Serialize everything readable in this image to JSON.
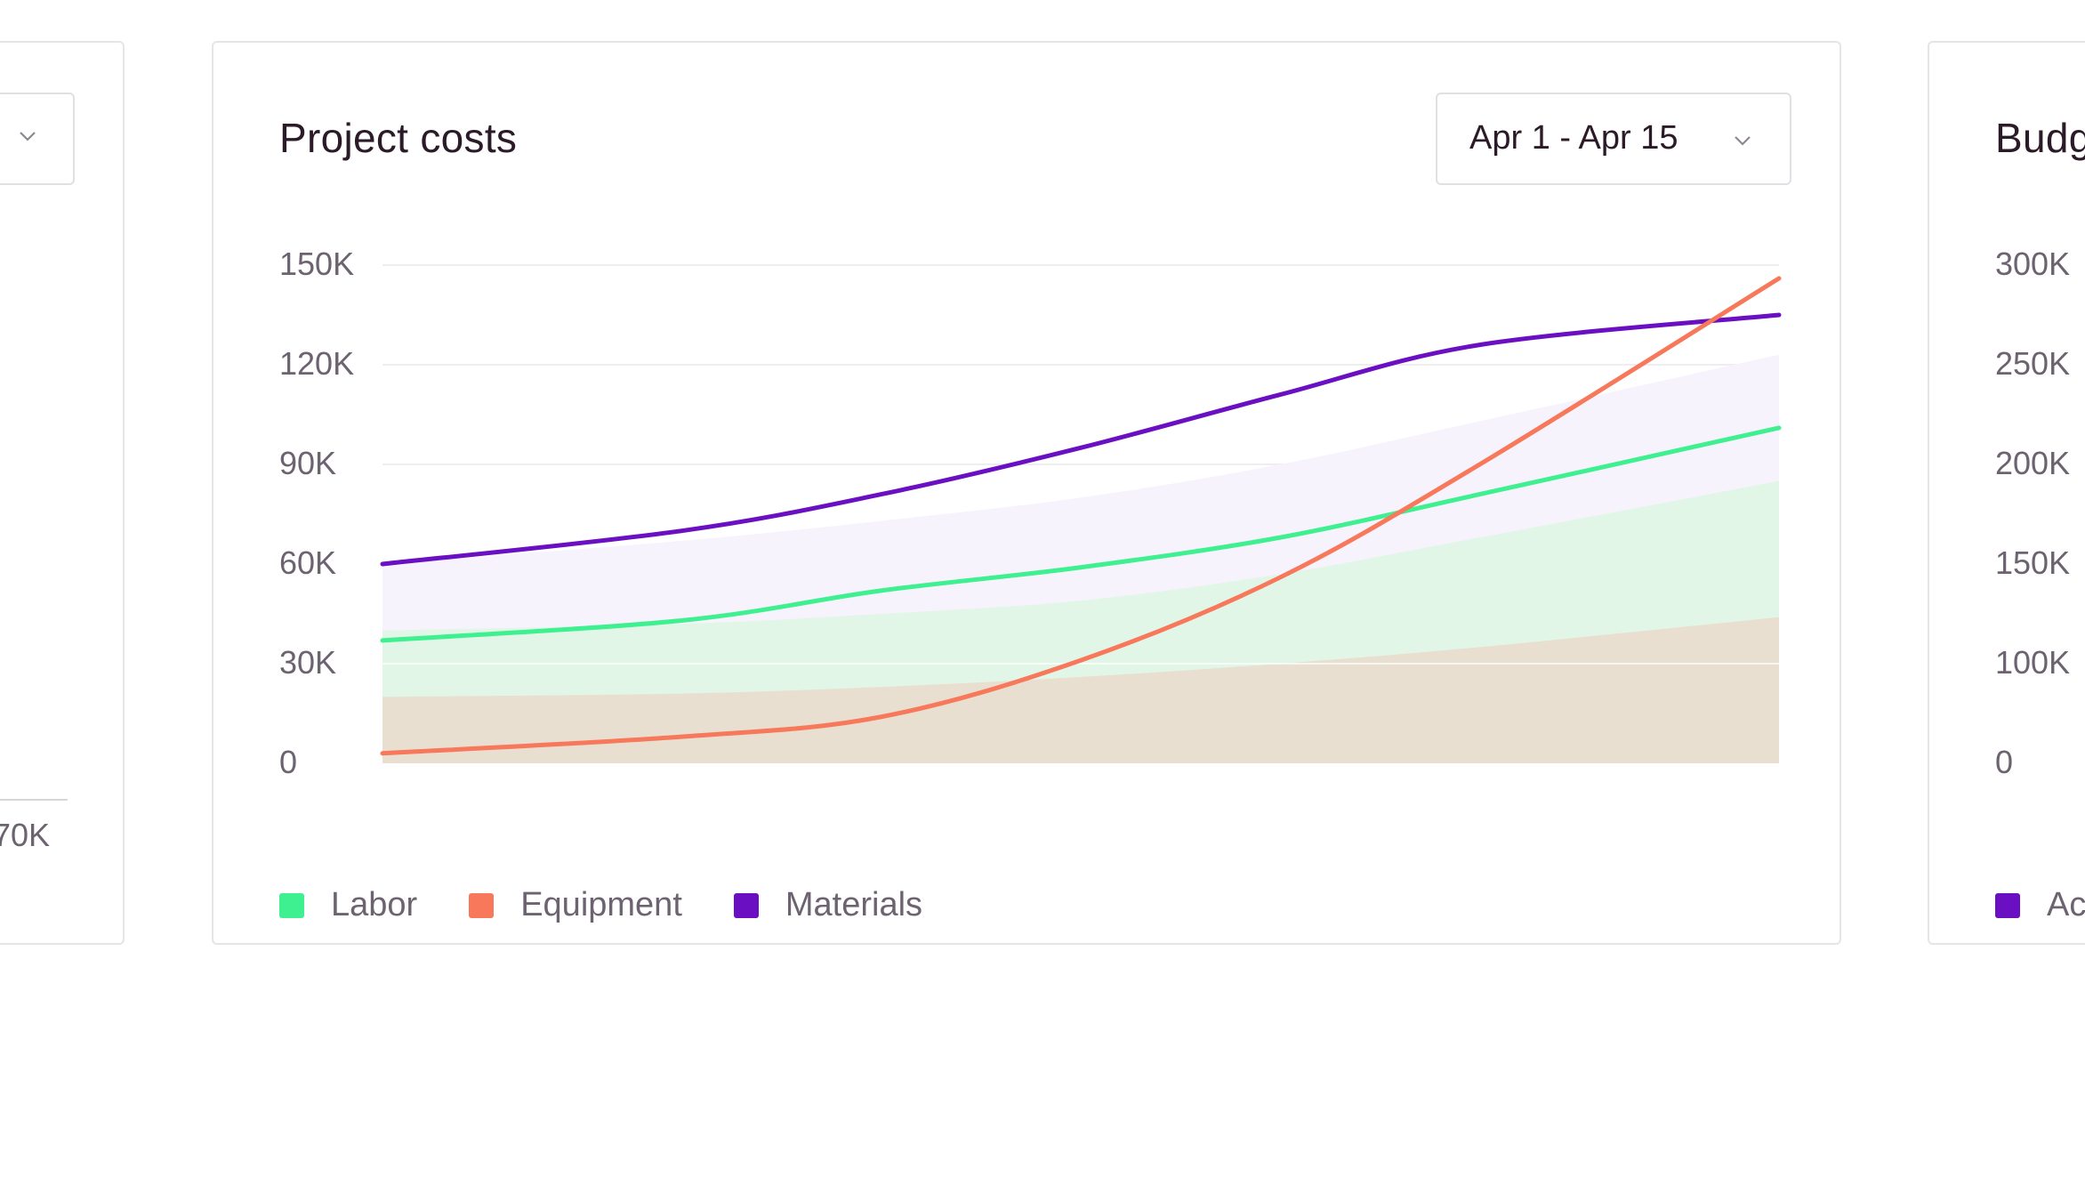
{
  "left_card": {
    "tick_partial": "70K"
  },
  "main_card": {
    "title": "Project costs",
    "date_range": "Apr 1 - Apr 15",
    "chevron_icon": "chevron-down-icon"
  },
  "right_card": {
    "title_partial": "Budg",
    "legend_partial": "Ac",
    "legend_color": "#6a10c2",
    "y_ticks": [
      "300K",
      "250K",
      "200K",
      "150K",
      "100K",
      "0"
    ]
  },
  "colors": {
    "labor": "#3ef08f",
    "equipment": "#f7785a",
    "materials": "#6a10c2",
    "labor_fill": "#e2f6e7",
    "equipment_fill": "#e8dfd0",
    "materials_fill": "#f6f3fc",
    "grid": "#efedf0"
  },
  "chart_data": {
    "type": "line",
    "x": [
      1,
      4,
      6,
      8,
      10,
      12,
      15
    ],
    "y_ticks": [
      "150K",
      "120K",
      "90K",
      "60K",
      "30K",
      "0"
    ],
    "ylim": [
      0,
      150000
    ],
    "grid": true,
    "legend_position": "bottom-left",
    "series": [
      {
        "name": "Labor",
        "values": [
          37000,
          43000,
          52000,
          59000,
          68000,
          81000,
          101000
        ]
      },
      {
        "name": "Equipment",
        "values": [
          3000,
          8000,
          14000,
          31000,
          56000,
          90000,
          146000
        ]
      },
      {
        "name": "Materials",
        "values": [
          60000,
          70000,
          81000,
          95000,
          111000,
          126000,
          135000
        ]
      }
    ],
    "background_areas": [
      {
        "series": "Materials",
        "values": [
          60000,
          67000,
          73000,
          80000,
          90000,
          103000,
          123000
        ]
      },
      {
        "series": "Labor",
        "values": [
          40000,
          42000,
          45000,
          49000,
          57000,
          68000,
          85000
        ]
      },
      {
        "series": "Equipment",
        "values": [
          20000,
          21000,
          23000,
          26000,
          30000,
          35000,
          44000
        ]
      }
    ]
  }
}
